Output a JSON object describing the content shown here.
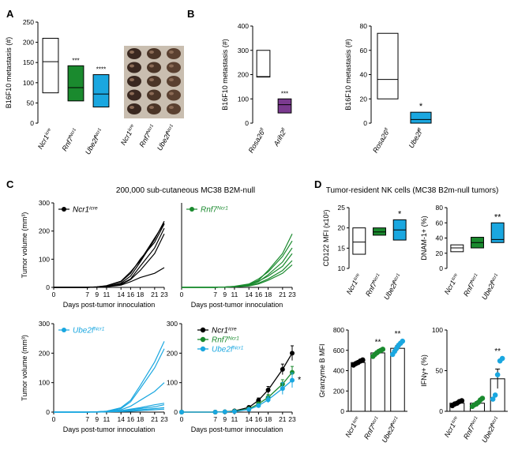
{
  "panels": {
    "A": "A",
    "B": "B",
    "C": "C",
    "D": "D"
  },
  "headers": {
    "C": "200,000 sub-cutaneous MC38 B2M-null",
    "D": "Tumor-resident NK cells (MC38 B2m-null tumors)"
  },
  "colors": {
    "ncr1": "#000000",
    "rnf7": "#1a8a2e",
    "ube2f": "#1aa7e0",
    "arih2": "#7b3a8f",
    "white": "#ffffff"
  },
  "chart_data": [
    {
      "id": "A",
      "type": "box",
      "ylabel": "B16F10 metastasis (#)",
      "ylim": [
        0,
        250
      ],
      "yticks": [
        0,
        50,
        100,
        150,
        200,
        250
      ],
      "categories": [
        "Ncr1icre",
        "Rnf7Ncr1",
        "Ube2fNcr1"
      ],
      "boxes": [
        {
          "category": "Ncr1icre",
          "low": 75,
          "median": 152,
          "high": 210,
          "color": "#ffffff",
          "sig": ""
        },
        {
          "category": "Rnf7Ncr1",
          "low": 55,
          "median": 88,
          "high": 142,
          "color": "#1a8a2e",
          "sig": "***"
        },
        {
          "category": "Ube2fNcr1",
          "low": 40,
          "median": 72,
          "high": 120,
          "color": "#1aa7e0",
          "sig": "****"
        }
      ],
      "photo_labels": [
        "Ncr1icre",
        "Rnf7Ncr1",
        "Ube2fNcr1"
      ]
    },
    {
      "id": "B1",
      "type": "box",
      "ylabel": "B16F10 metastasis (#)",
      "ylim": [
        0,
        400
      ],
      "yticks": [
        0,
        100,
        200,
        300,
        400
      ],
      "categories": [
        "Rosa26fl",
        "Arih2fl"
      ],
      "boxes": [
        {
          "category": "Rosa26fl",
          "low": 190,
          "median": 192,
          "high": 300,
          "color": "#ffffff",
          "sig": ""
        },
        {
          "category": "Arih2fl",
          "low": 42,
          "median": 76,
          "high": 100,
          "color": "#7b3a8f",
          "sig": "***"
        }
      ]
    },
    {
      "id": "B2",
      "type": "box",
      "ylabel": "B16F10 metastasis (#)",
      "ylim": [
        0,
        80
      ],
      "yticks": [
        0,
        20,
        40,
        60,
        80
      ],
      "categories": [
        "Rosa26fl",
        "Ube2ffl"
      ],
      "boxes": [
        {
          "category": "Rosa26fl",
          "low": 20,
          "median": 36,
          "high": 74,
          "color": "#ffffff",
          "sig": ""
        },
        {
          "category": "Ube2ffl",
          "low": 0,
          "median": 3,
          "high": 9,
          "color": "#1aa7e0",
          "sig": "*"
        }
      ]
    },
    {
      "id": "C1",
      "type": "line",
      "legend": "Ncr1icre",
      "color": "#000000",
      "ylabel": "Tumor volume (mm³)",
      "xlabel": "Days post-tumor innoculation",
      "ylim": [
        0,
        300
      ],
      "yticks": [
        0,
        100,
        200,
        300
      ],
      "xlim": [
        0,
        23
      ],
      "xticks": [
        0,
        7,
        9,
        11,
        14,
        16,
        18,
        21,
        23
      ],
      "x": [
        0,
        7,
        9,
        11,
        14,
        16,
        18,
        21,
        23
      ],
      "series": [
        [
          0,
          0,
          1,
          3,
          15,
          40,
          90,
          170,
          235
        ],
        [
          0,
          0,
          2,
          5,
          20,
          50,
          100,
          160,
          225
        ],
        [
          0,
          0,
          1,
          4,
          12,
          30,
          75,
          140,
          210
        ],
        [
          0,
          0,
          1,
          3,
          10,
          28,
          60,
          120,
          190
        ],
        [
          0,
          0,
          2,
          6,
          22,
          55,
          95,
          175,
          228
        ],
        [
          0,
          0,
          1,
          2,
          8,
          20,
          35,
          50,
          70
        ]
      ]
    },
    {
      "id": "C2",
      "type": "line",
      "legend": "Rnf7Ncr1",
      "color": "#1a8a2e",
      "ylim": [
        0,
        300
      ],
      "xlim": [
        0,
        23
      ],
      "xlabel": "Days post-tumor innoculation",
      "xticks": [
        0,
        7,
        9,
        11,
        14,
        16,
        18,
        21,
        23
      ],
      "x": [
        0,
        7,
        9,
        11,
        14,
        16,
        18,
        21,
        23
      ],
      "series": [
        [
          0,
          0,
          1,
          3,
          10,
          25,
          60,
          120,
          190
        ],
        [
          0,
          0,
          1,
          4,
          12,
          30,
          55,
          110,
          165
        ],
        [
          0,
          0,
          1,
          2,
          8,
          20,
          45,
          90,
          140
        ],
        [
          0,
          0,
          1,
          3,
          9,
          22,
          40,
          75,
          120
        ],
        [
          0,
          0,
          1,
          2,
          6,
          15,
          30,
          60,
          95
        ],
        [
          0,
          0,
          1,
          2,
          5,
          12,
          25,
          50,
          80
        ]
      ]
    },
    {
      "id": "C3",
      "type": "line",
      "legend": "Ube2fNcr1",
      "color": "#1aa7e0",
      "ylabel": "Tumor volume (mm³)",
      "xlabel": "Days post-tumor innoculation",
      "ylim": [
        0,
        300
      ],
      "yticks": [
        0,
        100,
        200,
        300
      ],
      "xlim": [
        0,
        23
      ],
      "xticks": [
        0,
        7,
        9,
        11,
        14,
        16,
        18,
        21,
        23
      ],
      "x": [
        0,
        7,
        9,
        11,
        14,
        16,
        18,
        21,
        23
      ],
      "series": [
        [
          0,
          0,
          1,
          3,
          15,
          40,
          90,
          170,
          240
        ],
        [
          0,
          0,
          1,
          3,
          12,
          35,
          80,
          150,
          215
        ],
        [
          0,
          0,
          1,
          2,
          8,
          20,
          40,
          70,
          100
        ],
        [
          0,
          0,
          1,
          2,
          5,
          10,
          15,
          25,
          30
        ],
        [
          0,
          0,
          1,
          2,
          4,
          8,
          12,
          18,
          25
        ],
        [
          0,
          0,
          0,
          1,
          3,
          5,
          8,
          12,
          15
        ],
        [
          0,
          0,
          0,
          1,
          2,
          3,
          5,
          8,
          10
        ]
      ]
    },
    {
      "id": "C4",
      "type": "line-errorbar",
      "ylim": [
        0,
        300
      ],
      "yticks": [
        0,
        100,
        200,
        300
      ],
      "xlim": [
        0,
        23
      ],
      "xlabel": "Days post-tumor innoculation",
      "xticks": [
        0,
        7,
        9,
        11,
        14,
        16,
        18,
        21,
        23
      ],
      "x": [
        0,
        7,
        9,
        11,
        14,
        16,
        18,
        21,
        23
      ],
      "annotation": "*",
      "series": [
        {
          "name": "Ncr1icre",
          "color": "#000000",
          "values": [
            0,
            0,
            1,
            4,
            16,
            40,
            75,
            145,
            200
          ],
          "err": [
            0,
            0,
            0,
            1,
            4,
            8,
            12,
            18,
            25
          ]
        },
        {
          "name": "Rnf7Ncr1",
          "color": "#1a8a2e",
          "values": [
            0,
            0,
            1,
            3,
            11,
            28,
            50,
            95,
            135
          ],
          "err": [
            0,
            0,
            0,
            1,
            3,
            6,
            10,
            15,
            20
          ]
        },
        {
          "name": "Ube2fNcr1",
          "color": "#1aa7e0",
          "values": [
            0,
            0,
            1,
            2,
            9,
            22,
            42,
            80,
            108
          ],
          "err": [
            0,
            0,
            0,
            1,
            3,
            6,
            10,
            20,
            25
          ]
        }
      ]
    },
    {
      "id": "D1",
      "type": "box",
      "ylabel": "CD122 MFI (x10²)",
      "ylim": [
        10,
        25
      ],
      "yticks": [
        10,
        15,
        20,
        25
      ],
      "categories": [
        "Ncr1icre",
        "Rnf7Ncr1",
        "Ube2fNcr1"
      ],
      "boxes": [
        {
          "category": "Ncr1icre",
          "low": 13.5,
          "median": 16.5,
          "high": 20,
          "color": "#ffffff",
          "sig": ""
        },
        {
          "category": "Rnf7Ncr1",
          "low": 18.2,
          "median": 19,
          "high": 20,
          "color": "#1a8a2e",
          "sig": ""
        },
        {
          "category": "Ube2fNcr1",
          "low": 17,
          "median": 19.5,
          "high": 22,
          "color": "#1aa7e0",
          "sig": "*"
        }
      ]
    },
    {
      "id": "D2",
      "type": "box",
      "ylabel": "DNAM-1+ (%)",
      "ylim": [
        0,
        80
      ],
      "yticks": [
        0,
        20,
        40,
        60,
        80
      ],
      "categories": [
        "Ncr1icre",
        "Rnf7Ncr1",
        "Ube2fNcr1"
      ],
      "boxes": [
        {
          "category": "Ncr1icre",
          "low": 22,
          "median": 27,
          "high": 31,
          "color": "#ffffff",
          "sig": ""
        },
        {
          "category": "Rnf7Ncr1",
          "low": 27,
          "median": 34,
          "high": 41,
          "color": "#1a8a2e",
          "sig": ""
        },
        {
          "category": "Ube2fNcr1",
          "low": 34,
          "median": 38,
          "high": 60,
          "color": "#1aa7e0",
          "sig": "**"
        }
      ]
    },
    {
      "id": "D3",
      "type": "bar-dots",
      "ylabel": "Granzyme B MFI",
      "ylim": [
        0,
        800
      ],
      "yticks": [
        0,
        200,
        400,
        600,
        800
      ],
      "categories": [
        "Ncr1icre",
        "Rnf7Ncr1",
        "Ube2fNcr1"
      ],
      "bars": [
        {
          "category": "Ncr1icre",
          "mean": 480,
          "err": 15,
          "color": "#000000",
          "points": [
            455,
            470,
            480,
            495,
            505
          ],
          "sig": ""
        },
        {
          "category": "Rnf7Ncr1",
          "mean": 575,
          "err": 20,
          "color": "#1a8a2e",
          "points": [
            540,
            560,
            575,
            590,
            600,
            610
          ],
          "sig": "**"
        },
        {
          "category": "Ube2fNcr1",
          "mean": 620,
          "err": 25,
          "color": "#1aa7e0",
          "points": [
            560,
            590,
            620,
            650,
            670,
            690
          ],
          "sig": "**"
        }
      ]
    },
    {
      "id": "D4",
      "type": "bar-dots",
      "ylabel": "IFNγ+ (%)",
      "ylim": [
        0,
        100
      ],
      "yticks": [
        0,
        50,
        100
      ],
      "categories": [
        "Ncr1icre",
        "Rnf7Ncr1",
        "Ube2fNcr1"
      ],
      "bars": [
        {
          "category": "Ncr1icre",
          "mean": 10,
          "err": 1.5,
          "color": "#000000",
          "points": [
            7,
            9,
            10,
            12,
            13
          ],
          "sig": ""
        },
        {
          "category": "Rnf7Ncr1",
          "mean": 10,
          "err": 2,
          "color": "#1a8a2e",
          "points": [
            6,
            8,
            9,
            11,
            14,
            16
          ],
          "sig": ""
        },
        {
          "category": "Ube2fNcr1",
          "mean": 40,
          "err": 12,
          "color": "#1aa7e0",
          "points": [
            15,
            20,
            45,
            62,
            65
          ],
          "sig": "**"
        }
      ]
    }
  ]
}
